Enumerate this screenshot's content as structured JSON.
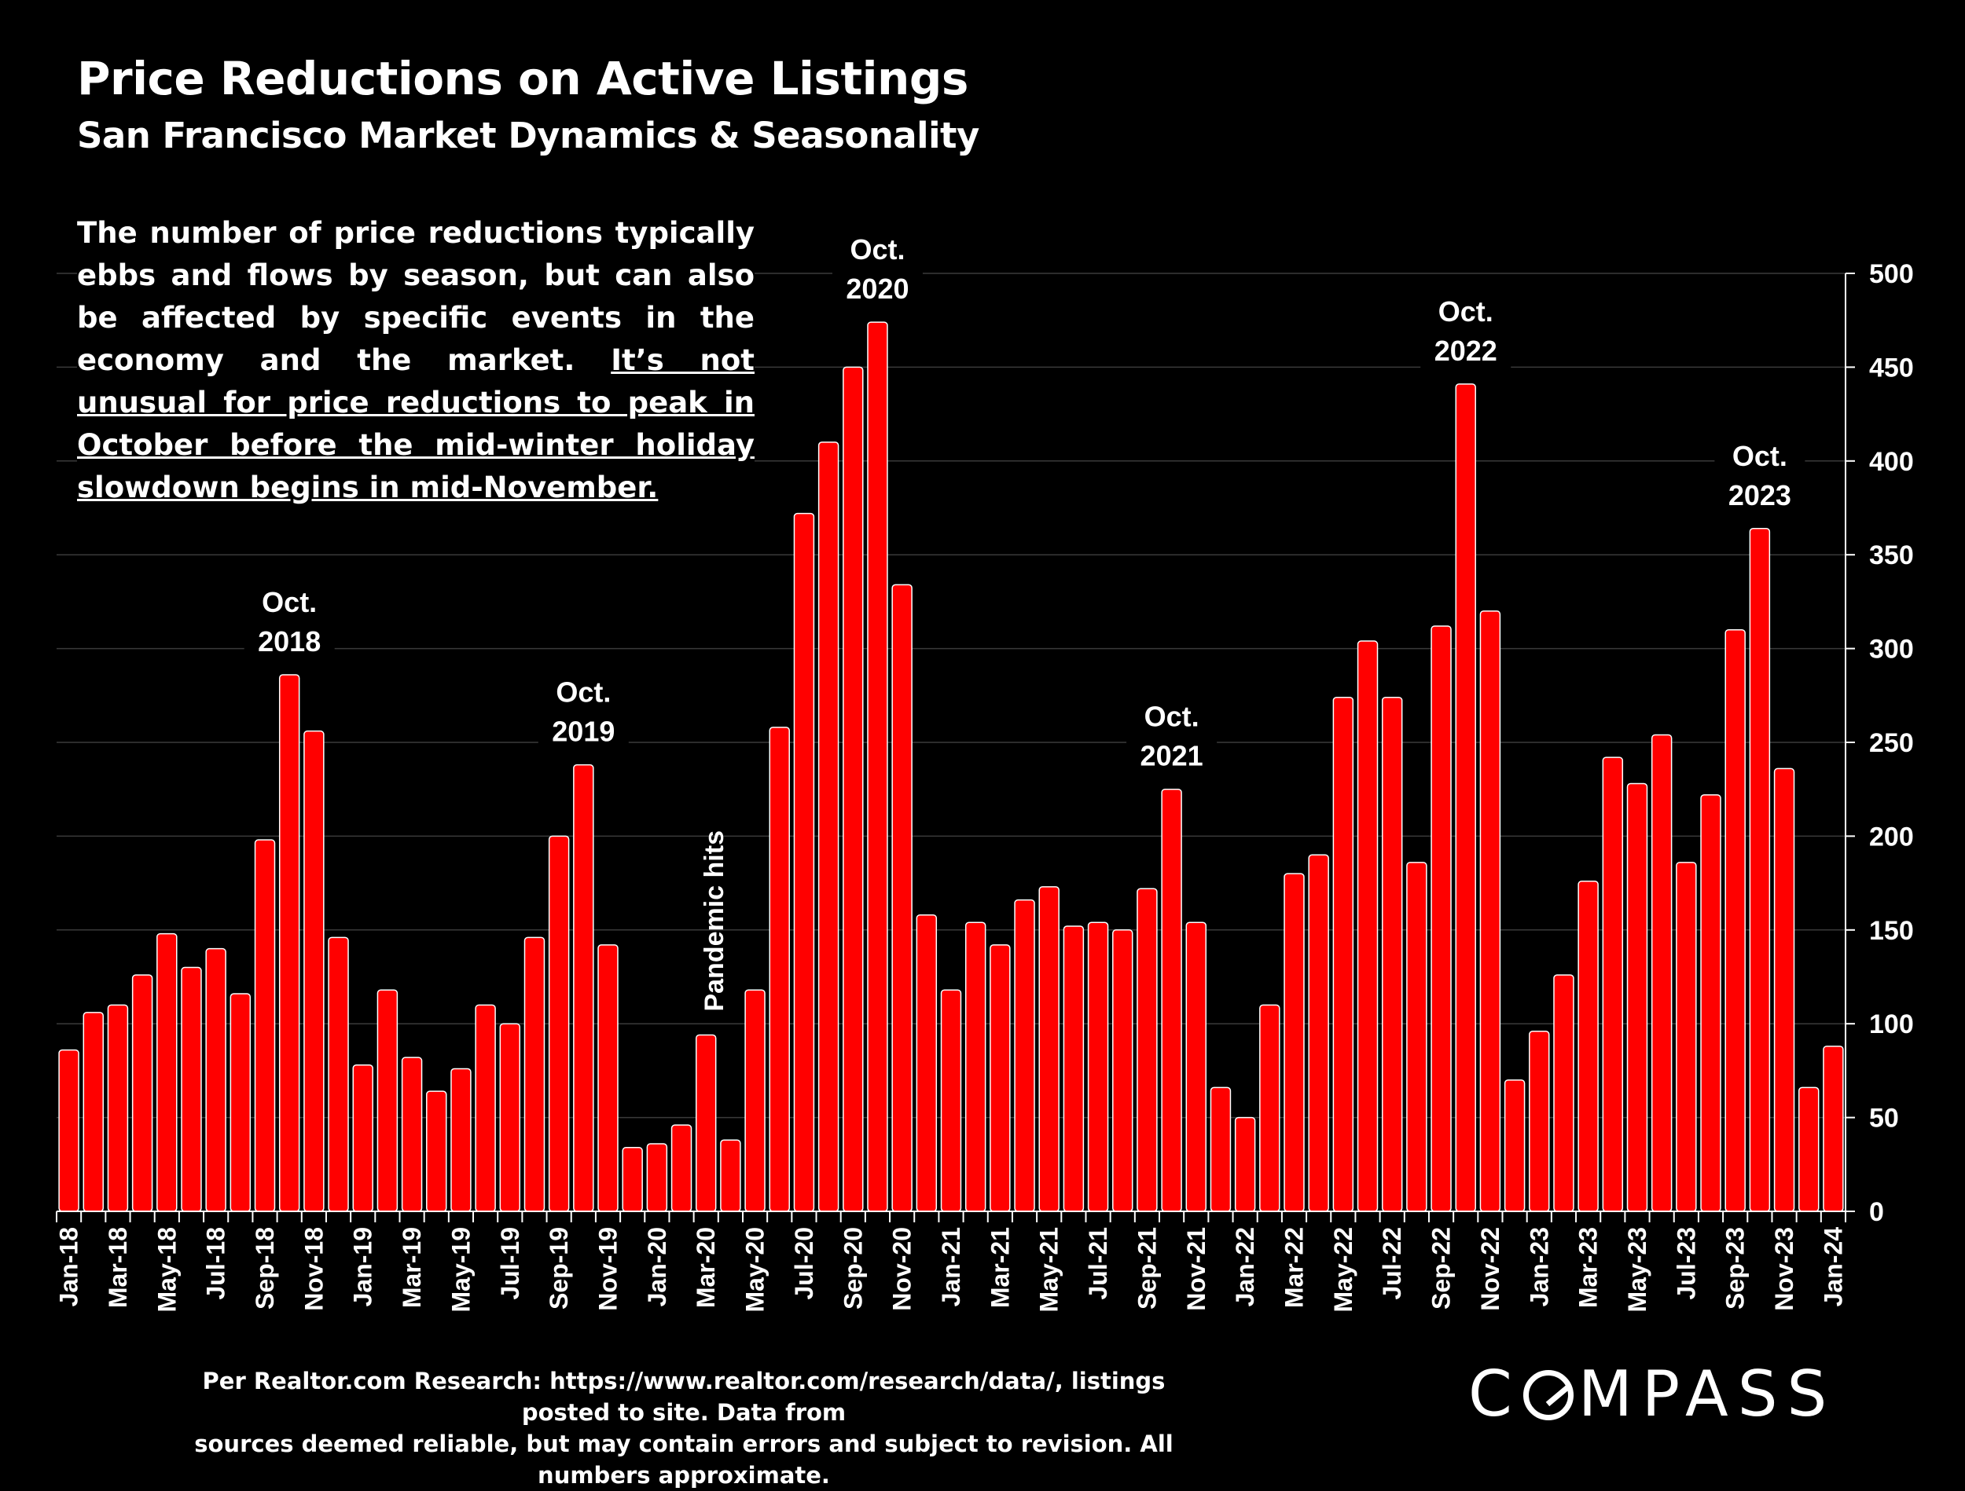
{
  "header": {
    "title": "Price Reductions on Active Listings",
    "subtitle": "San Francisco Market Dynamics & Seasonality"
  },
  "blurb": {
    "plain": "The number of price reductions typically ebbs and flows by season, but can also be affected by specific events in the economy and the market. ",
    "underlined": "It’s not unusual for price reductions to peak in October before the mid-winter holiday slowdown begins in mid-November."
  },
  "footer": {
    "source_line1": "Per Realtor.com Research:  https://www.realtor.com/research/data/, listings posted to site. Data from",
    "source_line2": "sources deemed reliable, but may contain errors and subject to revision. All numbers approximate.",
    "logo_text": "COMPASS"
  },
  "colors": {
    "bar": "#ff0000",
    "background": "#000000",
    "text": "#ffffff",
    "grid": "#3a3a3a"
  },
  "chart_data": {
    "type": "bar",
    "title": "Price Reductions on Active Listings",
    "subtitle": "San Francisco Market Dynamics & Seasonality",
    "ylim": [
      0,
      500
    ],
    "yticks": [
      0,
      50,
      100,
      150,
      200,
      250,
      300,
      350,
      400,
      450,
      500
    ],
    "y_axis_side": "right",
    "grid": true,
    "categories": [
      "Jan-18",
      "Feb-18",
      "Mar-18",
      "Apr-18",
      "May-18",
      "Jun-18",
      "Jul-18",
      "Aug-18",
      "Sep-18",
      "Oct-18",
      "Nov-18",
      "Dec-18",
      "Jan-19",
      "Feb-19",
      "Mar-19",
      "Apr-19",
      "May-19",
      "Jun-19",
      "Jul-19",
      "Aug-19",
      "Sep-19",
      "Oct-19",
      "Nov-19",
      "Dec-19",
      "Jan-20",
      "Feb-20",
      "Mar-20",
      "Apr-20",
      "May-20",
      "Jun-20",
      "Jul-20",
      "Aug-20",
      "Sep-20",
      "Oct-20",
      "Nov-20",
      "Dec-20",
      "Jan-21",
      "Feb-21",
      "Mar-21",
      "Apr-21",
      "May-21",
      "Jun-21",
      "Jul-21",
      "Aug-21",
      "Sep-21",
      "Oct-21",
      "Nov-21",
      "Dec-21",
      "Jan-22",
      "Feb-22",
      "Mar-22",
      "Apr-22",
      "May-22",
      "Jun-22",
      "Jul-22",
      "Aug-22",
      "Sep-22",
      "Oct-22",
      "Nov-22",
      "Dec-22",
      "Jan-23",
      "Feb-23",
      "Mar-23",
      "Apr-23",
      "May-23",
      "Jun-23",
      "Jul-23",
      "Aug-23",
      "Sep-23",
      "Oct-23",
      "Nov-23",
      "Dec-23",
      "Jan-24"
    ],
    "xtick_labels": [
      "Jan-18",
      "Mar-18",
      "May-18",
      "Jul-18",
      "Sep-18",
      "Nov-18",
      "Jan-19",
      "Mar-19",
      "May-19",
      "Jul-19",
      "Sep-19",
      "Nov-19",
      "Jan-20",
      "Mar-20",
      "May-20",
      "Jul-20",
      "Sep-20",
      "Nov-20",
      "Jan-21",
      "Mar-21",
      "May-21",
      "Jul-21",
      "Sep-21",
      "Nov-21",
      "Jan-22",
      "Mar-22",
      "May-22",
      "Jul-22",
      "Sep-22",
      "Nov-22",
      "Jan-23",
      "Mar-23",
      "May-23",
      "Jul-23",
      "Sep-23",
      "Nov-23",
      "Jan-24"
    ],
    "series": [
      {
        "values": [
          86,
          106,
          110,
          126,
          148,
          130,
          140,
          116,
          198,
          286,
          256,
          146,
          78,
          118,
          82,
          64,
          76,
          110,
          100,
          146,
          200,
          238,
          142,
          34,
          36,
          46,
          94,
          38,
          118,
          258,
          372,
          410,
          450,
          474,
          334,
          158,
          118,
          154,
          142,
          166,
          173,
          152,
          154,
          150,
          172,
          225,
          154,
          66,
          50,
          110,
          180,
          190,
          274,
          304,
          274,
          186,
          312,
          441,
          320,
          70,
          96,
          126,
          176,
          242,
          228,
          254,
          186,
          222,
          310,
          364,
          236,
          66,
          88
        ]
      }
    ],
    "annotations": [
      {
        "text_line1": "Oct.",
        "text_line2": "2018",
        "category": "Oct-18"
      },
      {
        "text_line1": "Oct.",
        "text_line2": "2019",
        "category": "Oct-19"
      },
      {
        "text_line1": "Oct.",
        "text_line2": "2020",
        "category": "Oct-20"
      },
      {
        "text_line1": "Oct.",
        "text_line2": "2021",
        "category": "Oct-21"
      },
      {
        "text_line1": "Oct.",
        "text_line2": "2022",
        "category": "Oct-22"
      },
      {
        "text_line1": "Oct.",
        "text_line2": "2023",
        "category": "Oct-23"
      },
      {
        "text_line1": "Pandemic hits",
        "text_line2": "",
        "category": "Mar-20",
        "rotated": true
      }
    ]
  }
}
